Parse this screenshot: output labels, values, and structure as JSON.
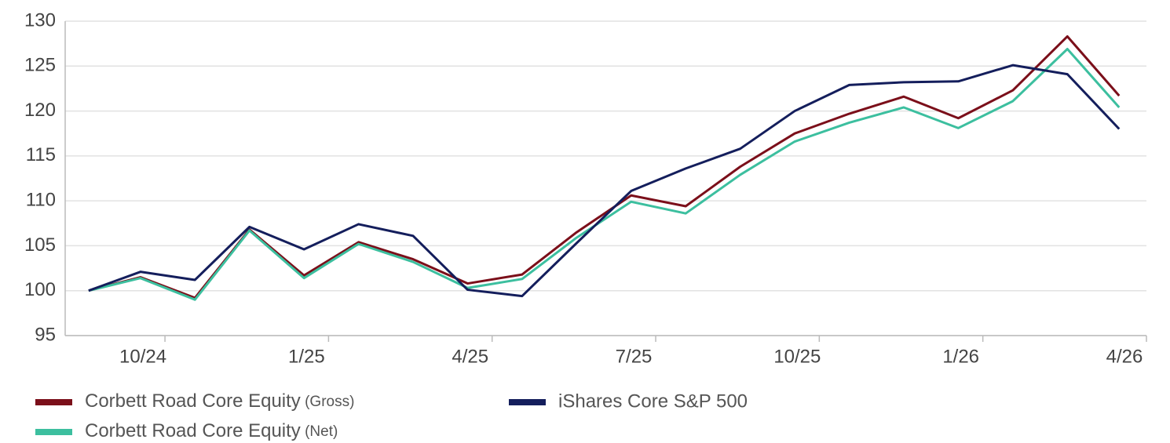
{
  "chart_data": {
    "type": "line",
    "x": [
      -1.4,
      -0.45,
      0.55,
      1.55,
      2.55,
      3.55,
      4.55,
      5.55,
      6.55,
      7.55,
      8.55,
      9.55,
      10.55,
      11.55,
      12.55,
      13.55,
      14.55,
      15.55,
      16.55,
      17.5
    ],
    "series": [
      {
        "name": "Corbett Road Core Equity (Gross)",
        "color": "#7b0f1a",
        "values": [
          100,
          101.5,
          99.2,
          106.8,
          101.7,
          105.4,
          103.5,
          100.8,
          101.8,
          106.5,
          110.6,
          109.4,
          113.8,
          117.5,
          119.7,
          121.6,
          119.2,
          122.3,
          128.3,
          121.7
        ]
      },
      {
        "name": "Corbett Road Core Equity (Net)",
        "color": "#3cbf9f",
        "values": [
          100,
          101.4,
          99.0,
          106.7,
          101.4,
          105.2,
          103.2,
          100.3,
          101.3,
          105.9,
          109.9,
          108.6,
          112.9,
          116.6,
          118.7,
          120.4,
          118.1,
          121.1,
          126.9,
          120.4
        ]
      },
      {
        "name": "iShares Core S&P 500",
        "color": "#141e5c",
        "values": [
          100,
          102.1,
          101.2,
          107.1,
          104.6,
          107.4,
          106.1,
          100.1,
          99.4,
          105.3,
          111.1,
          113.6,
          115.8,
          120.0,
          122.9,
          123.2,
          123.3,
          125.1,
          124.1,
          118.0
        ]
      }
    ],
    "xlim": [
      -1.83,
      18
    ],
    "xticks": [
      {
        "value": 0,
        "label": "10/24"
      },
      {
        "value": 3,
        "label": "1/25"
      },
      {
        "value": 6,
        "label": "4/25"
      },
      {
        "value": 9,
        "label": "7/25"
      },
      {
        "value": 12,
        "label": "10/25"
      },
      {
        "value": 15,
        "label": "1/26"
      },
      {
        "value": 18,
        "label": "4/26"
      }
    ],
    "ylim": [
      95,
      130
    ],
    "yticks": [
      95,
      100,
      105,
      110,
      115,
      120,
      125,
      130
    ],
    "grid": true
  }
}
